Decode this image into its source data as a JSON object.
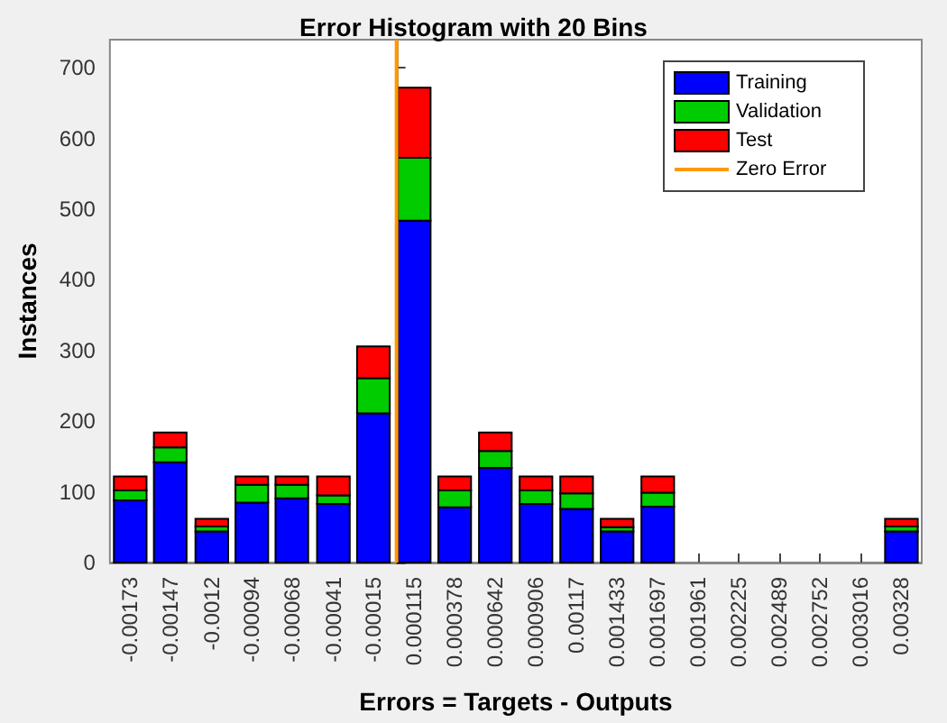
{
  "chart_data": {
    "type": "bar",
    "title": "Error Histogram with 20 Bins",
    "xlabel": "Errors = Targets - Outputs",
    "ylabel": "Instances",
    "stacked": true,
    "x": [
      -0.00173,
      -0.00147,
      -0.0012,
      -0.00094,
      -0.00068,
      -0.00041,
      -0.00015,
      0.000115,
      0.000378,
      0.000642,
      0.000906,
      0.00117,
      0.001433,
      0.001697,
      0.001961,
      0.002225,
      0.002489,
      0.002752,
      0.003016,
      0.00328
    ],
    "xlim": [
      -0.001862,
      0.003412
    ],
    "xticks": [
      -0.00173,
      -0.00147,
      -0.0012,
      -0.00094,
      -0.00068,
      -0.00041,
      -0.00015,
      0.000115,
      0.000378,
      0.000642,
      0.000906,
      0.00117,
      0.001433,
      0.001697,
      0.001961,
      0.002225,
      0.002489,
      0.002752,
      0.003016,
      0.00328
    ],
    "ylim": [
      0,
      740
    ],
    "yticks": [
      0,
      100,
      200,
      300,
      400,
      500,
      600,
      700
    ],
    "series": [
      {
        "name": "Training",
        "color": "#0000ff",
        "values": [
          88,
          142,
          44,
          85,
          91,
          83,
          211,
          484,
          78,
          134,
          83,
          76,
          44,
          79,
          0,
          0,
          0,
          0,
          0,
          44
        ]
      },
      {
        "name": "Validation",
        "color": "#00cc00",
        "values": [
          14,
          21,
          7,
          25,
          19,
          12,
          50,
          89,
          24,
          24,
          19,
          22,
          6,
          20,
          0,
          0,
          0,
          0,
          0,
          7
        ]
      },
      {
        "name": "Test",
        "color": "#ff0000",
        "values": [
          20,
          21,
          11,
          12,
          12,
          27,
          45,
          99,
          20,
          26,
          20,
          24,
          12,
          23,
          0,
          0,
          0,
          0,
          0,
          11
        ]
      },
      {
        "name": "Zero Error",
        "type": "line",
        "color": "#ff9900",
        "x": [
          0,
          0
        ],
        "values": [
          0,
          740
        ]
      }
    ],
    "legend": "top right",
    "grid": false
  }
}
